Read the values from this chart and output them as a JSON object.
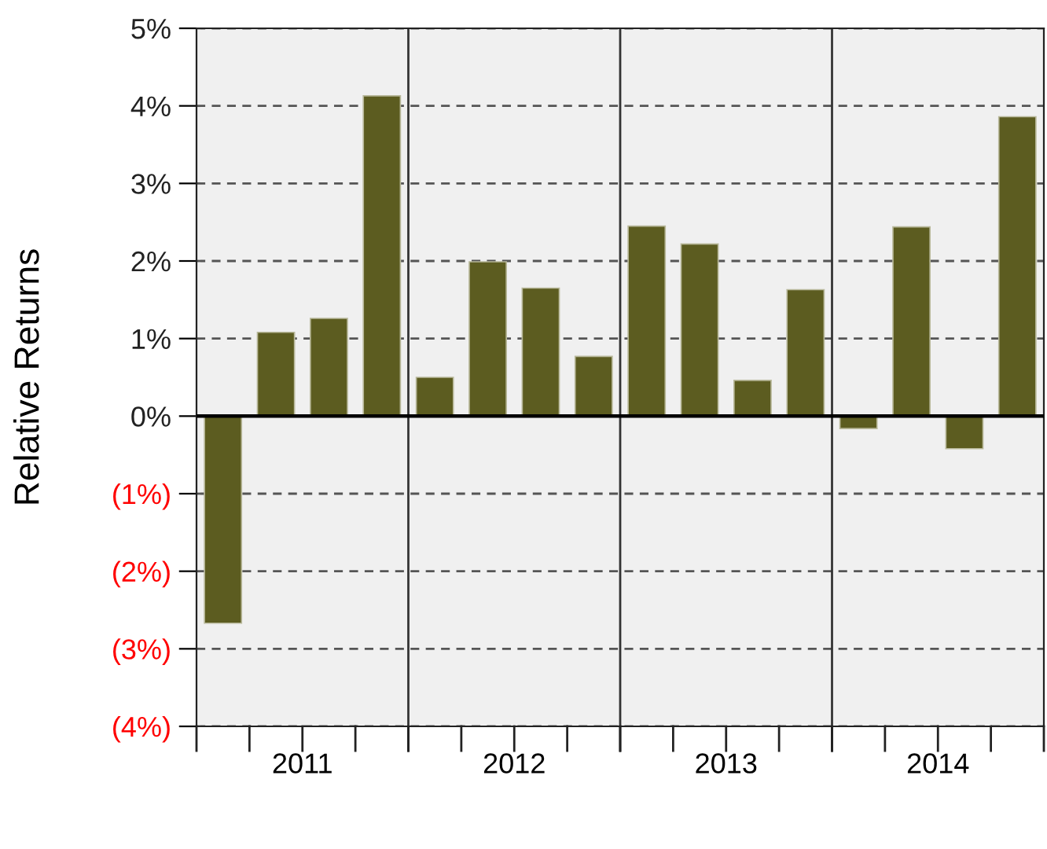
{
  "chart_data": {
    "type": "bar",
    "ylabel": "Relative Returns",
    "categories": [
      "2011",
      "2012",
      "2013",
      "2014"
    ],
    "series": [
      {
        "color": "#5c5c20",
        "values": [
          -2.67,
          0.5,
          2.45,
          -0.16
        ]
      },
      {
        "color": "#5c5c20",
        "values": [
          1.08,
          1.99,
          2.22,
          2.44
        ]
      },
      {
        "color": "#5c5c20",
        "values": [
          1.26,
          1.65,
          0.46,
          -0.42
        ]
      },
      {
        "color": "#5c5c20",
        "values": [
          4.13,
          0.77,
          1.63,
          3.86
        ]
      }
    ],
    "ylim": [
      -4,
      5
    ],
    "yticks": [
      {
        "value": -4,
        "label": "(4%)"
      },
      {
        "value": -3,
        "label": "(3%)"
      },
      {
        "value": -2,
        "label": "(2%)"
      },
      {
        "value": -1,
        "label": "(1%)"
      },
      {
        "value": 0,
        "label": "0%"
      },
      {
        "value": 1,
        "label": "1%"
      },
      {
        "value": 2,
        "label": "2%"
      },
      {
        "value": 3,
        "label": "3%"
      },
      {
        "value": 4,
        "label": "4%"
      },
      {
        "value": 5,
        "label": "5%"
      }
    ],
    "grid": "y"
  }
}
